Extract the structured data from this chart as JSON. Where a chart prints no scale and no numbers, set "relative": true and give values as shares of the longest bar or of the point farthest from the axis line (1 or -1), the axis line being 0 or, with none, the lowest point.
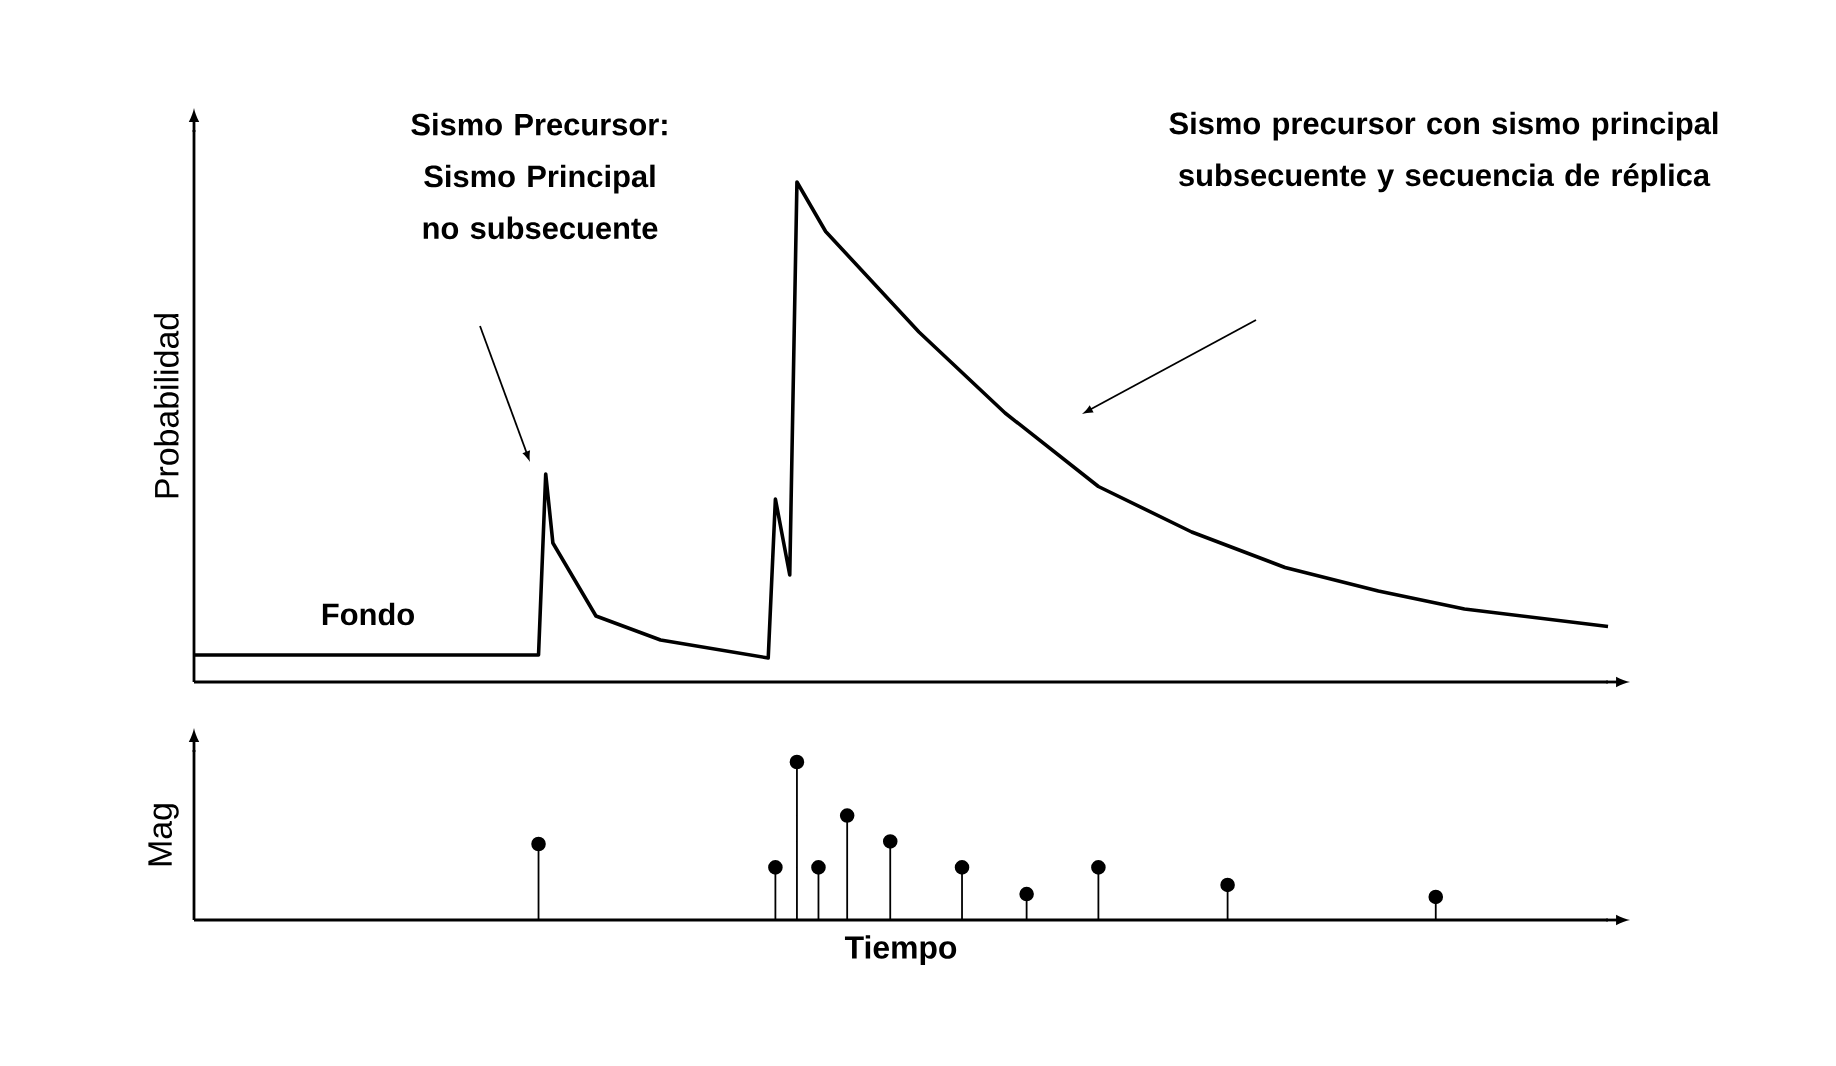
{
  "chart_data": [
    {
      "type": "line",
      "ylabel": "Probabilidad",
      "relative": true,
      "tick_labels": false,
      "marker": "none",
      "line_style": "solid",
      "categories": [
        null,
        null,
        null,
        null,
        null,
        null,
        null,
        null,
        null,
        null,
        null,
        null,
        null,
        null,
        null,
        null,
        null,
        null,
        null,
        null,
        null,
        null,
        null,
        null,
        null,
        null,
        null,
        null,
        null,
        null,
        null,
        null,
        null,
        null,
        null,
        null,
        null,
        null,
        null,
        null,
        null,
        null,
        null,
        null,
        null,
        null,
        null,
        null,
        null,
        null,
        null,
        null,
        null,
        null,
        null,
        null,
        null,
        null,
        null,
        null,
        null,
        null,
        null,
        null,
        null,
        null,
        null,
        null,
        null,
        null,
        null,
        null,
        null,
        null,
        null,
        null,
        null,
        null,
        null,
        null,
        null,
        null,
        null,
        null,
        null,
        null,
        null,
        null,
        null,
        null,
        null,
        null,
        null,
        null,
        null,
        null,
        null,
        null,
        null,
        null,
        null,
        null,
        null,
        null,
        null,
        null,
        null,
        null,
        null,
        null,
        null,
        null,
        null,
        null,
        null,
        null,
        null,
        null,
        null,
        null,
        null,
        null,
        null,
        null,
        null,
        null,
        null,
        null,
        null,
        null,
        null,
        null,
        null,
        null,
        null,
        null,
        null,
        null,
        null,
        null,
        null,
        null,
        null,
        null,
        null,
        null,
        null,
        null,
        null,
        null,
        null,
        null,
        null,
        null,
        null,
        null,
        null,
        null,
        null,
        null,
        null,
        null,
        null,
        null,
        null,
        null,
        null,
        null,
        null,
        null,
        null,
        null,
        null,
        null,
        null,
        null,
        null,
        null,
        null,
        null,
        null,
        null,
        null,
        null,
        null,
        null,
        null,
        null,
        null,
        null,
        null,
        null,
        null,
        null,
        null,
        null,
        null,
        null
      ],
      "series": [
        {
          "color": "#000000",
          "values": [
            0.054,
            null,
            null,
            null,
            null,
            null,
            null,
            null,
            null,
            null,
            null,
            null,
            null,
            null,
            null,
            null,
            null,
            null,
            null,
            null,
            null,
            null,
            null,
            null,
            null,
            null,
            null,
            null,
            null,
            null,
            null,
            null,
            null,
            null,
            null,
            null,
            null,
            null,
            null,
            null,
            null,
            null,
            null,
            null,
            null,
            null,
            null,
            null,
            0.054,
            0.416,
            0.278,
            null,
            null,
            null,
            null,
            null,
            0.132,
            null,
            null,
            null,
            null,
            null,
            null,
            null,
            null,
            0.084,
            null,
            null,
            null,
            null,
            null,
            null,
            null,
            null,
            null,
            null,
            null,
            null,
            null,
            null,
            0.048,
            0.366,
            null,
            0.214,
            1,
            null,
            null,
            null,
            0.901,
            null,
            null,
            null,
            null,
            null,
            null,
            null,
            null,
            null,
            null,
            null,
            null,
            0.7,
            null,
            null,
            null,
            null,
            null,
            null,
            null,
            null,
            null,
            null,
            null,
            0.538,
            null,
            null,
            null,
            null,
            null,
            null,
            null,
            null,
            null,
            null,
            null,
            null,
            0.391,
            null,
            null,
            null,
            null,
            null,
            null,
            null,
            null,
            null,
            null,
            null,
            null,
            0.3,
            null,
            null,
            null,
            null,
            null,
            null,
            null,
            null,
            null,
            null,
            null,
            null,
            0.229,
            null,
            null,
            null,
            null,
            null,
            null,
            null,
            null,
            null,
            null,
            null,
            null,
            0.182,
            null,
            null,
            null,
            null,
            null,
            null,
            null,
            null,
            null,
            null,
            null,
            0.146,
            null,
            null,
            null,
            null,
            null,
            null,
            null,
            null,
            null,
            null,
            null,
            null,
            null,
            null,
            null,
            null,
            null,
            null,
            null,
            0.111
          ]
        }
      ],
      "annotations": [
        "Sismo Precursor: Sismo Principal no subsecuente",
        "Sismo precursor con sismo principal subsecuente y secuencia de réplica",
        "Fondo"
      ]
    },
    {
      "type": "lollipop",
      "ylabel": "Mag",
      "xlabel": "Tiempo",
      "relative": true,
      "tick_labels": false,
      "marker": "circle",
      "categories": [
        null,
        null,
        null,
        null,
        null,
        null,
        null,
        null,
        null,
        null,
        null,
        null,
        null,
        null,
        null,
        null,
        null,
        null,
        null,
        null,
        null,
        null,
        null,
        null,
        null,
        null,
        null,
        null,
        null,
        null,
        null,
        null,
        null,
        null,
        null,
        null,
        null,
        null,
        null,
        null,
        null,
        null,
        null,
        null,
        null,
        null,
        null,
        null,
        null,
        null,
        null,
        null,
        null,
        null,
        null,
        null,
        null,
        null,
        null,
        null,
        null,
        null,
        null,
        null,
        null,
        null,
        null,
        null,
        null,
        null,
        null,
        null,
        null,
        null,
        null,
        null,
        null,
        null,
        null,
        null,
        null,
        null,
        null,
        null,
        null,
        null,
        null,
        null,
        null,
        null,
        null,
        null,
        null,
        null,
        null,
        null,
        null,
        null,
        null,
        null,
        null,
        null,
        null,
        null,
        null,
        null,
        null,
        null,
        null,
        null,
        null,
        null,
        null,
        null,
        null,
        null,
        null,
        null,
        null,
        null,
        null,
        null,
        null,
        null,
        null,
        null,
        null,
        null,
        null,
        null,
        null,
        null,
        null,
        null,
        null,
        null,
        null,
        null,
        null,
        null,
        null,
        null,
        null,
        null,
        null,
        null,
        null,
        null,
        null,
        null,
        null,
        null,
        null,
        null,
        null,
        null,
        null,
        null,
        null,
        null,
        null,
        null,
        null,
        null,
        null,
        null,
        null,
        null,
        null,
        null,
        null,
        null,
        null,
        null,
        null,
        null,
        null,
        null,
        null,
        null,
        null,
        null,
        null,
        null,
        null,
        null,
        null,
        null,
        null,
        null,
        null,
        null,
        null,
        null,
        null,
        null,
        null,
        null
      ],
      "series": [
        {
          "color": "#000000",
          "values": [
            null,
            null,
            null,
            null,
            null,
            null,
            null,
            null,
            null,
            null,
            null,
            null,
            null,
            null,
            null,
            null,
            null,
            null,
            null,
            null,
            null,
            null,
            null,
            null,
            null,
            null,
            null,
            null,
            null,
            null,
            null,
            null,
            null,
            null,
            null,
            null,
            null,
            null,
            null,
            null,
            null,
            null,
            null,
            null,
            null,
            null,
            null,
            null,
            0.481,
            null,
            null,
            null,
            null,
            null,
            null,
            null,
            null,
            null,
            null,
            null,
            null,
            null,
            null,
            null,
            null,
            null,
            null,
            null,
            null,
            null,
            null,
            null,
            null,
            null,
            null,
            null,
            null,
            null,
            null,
            null,
            null,
            0.333,
            null,
            null,
            1,
            null,
            null,
            0.333,
            null,
            null,
            null,
            0.661,
            null,
            null,
            null,
            null,
            null,
            0.497,
            null,
            null,
            null,
            null,
            null,
            null,
            null,
            null,
            null,
            0.333,
            null,
            null,
            null,
            null,
            null,
            null,
            null,
            null,
            0.164,
            null,
            null,
            null,
            null,
            null,
            null,
            null,
            null,
            null,
            0.333,
            null,
            null,
            null,
            null,
            null,
            null,
            null,
            null,
            null,
            null,
            null,
            null,
            null,
            null,
            null,
            null,
            null,
            0.222,
            null,
            null,
            null,
            null,
            null,
            null,
            null,
            null,
            null,
            null,
            null,
            null,
            null,
            null,
            null,
            null,
            null,
            null,
            null,
            null,
            null,
            null,
            null,
            null,
            null,
            null,
            null,
            null,
            0.146,
            null,
            null,
            null,
            null,
            null,
            null,
            null,
            null,
            null,
            null,
            null,
            null,
            null,
            null,
            null,
            null,
            null,
            null,
            null,
            null,
            null,
            null,
            null,
            null
          ]
        }
      ]
    }
  ]
}
